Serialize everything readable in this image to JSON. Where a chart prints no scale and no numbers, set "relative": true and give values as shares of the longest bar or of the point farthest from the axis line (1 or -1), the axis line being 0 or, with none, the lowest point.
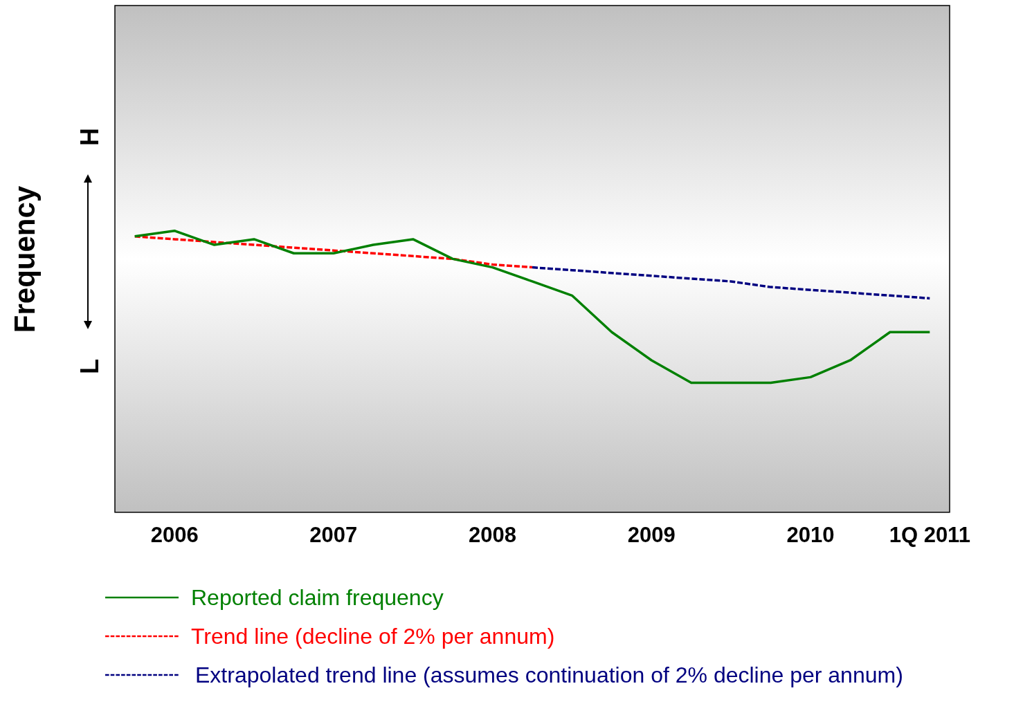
{
  "chart_data": {
    "type": "line",
    "relative": true,
    "ylabel": "Frequency",
    "annotations": [
      "H",
      "L"
    ],
    "categories": [
      null,
      "2006",
      null,
      null,
      null,
      "2007",
      null,
      null,
      null,
      "2008",
      null,
      null,
      null,
      "2009",
      null,
      null,
      null,
      "2010",
      null,
      null,
      "1Q 2011"
    ],
    "series": [
      {
        "name": "Reported claim frequency",
        "color": "#008000",
        "line_style": "solid",
        "values": [
          0.98,
          1,
          0.95,
          0.97,
          0.92,
          0.92,
          0.95,
          0.97,
          0.9,
          0.87,
          0.82,
          0.77,
          0.64,
          0.54,
          0.46,
          0.46,
          0.46,
          0.48,
          0.54,
          0.64,
          0.64
        ]
      },
      {
        "name": "Trend line (decline of 2% per annum)",
        "color": "#ff0000",
        "line_style": "dashed",
        "values": [
          0.98,
          0.97,
          0.96,
          0.95,
          0.94,
          0.93,
          0.92,
          0.91,
          0.9,
          0.88,
          0.87,
          null,
          null,
          null,
          null,
          null,
          null,
          null,
          null,
          null,
          null
        ]
      },
      {
        "name": "Extrapolated trend line (assumes continuation of 2% decline per annum)",
        "color": "#000080",
        "line_style": "dashed",
        "values": [
          null,
          null,
          null,
          null,
          null,
          null,
          null,
          null,
          null,
          null,
          0.87,
          0.86,
          0.85,
          0.84,
          0.83,
          0.82,
          0.8,
          0.79,
          0.78,
          0.77,
          0.76
        ]
      }
    ],
    "legend": "bottom",
    "grid": false,
    "marker": "none"
  }
}
